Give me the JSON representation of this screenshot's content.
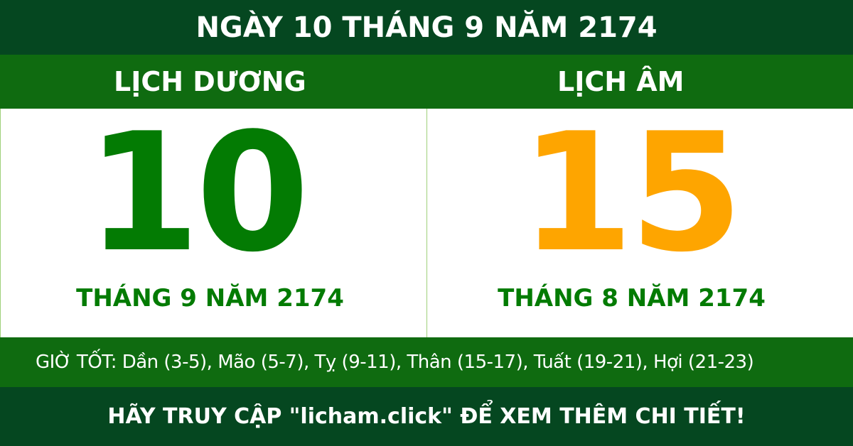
{
  "title": "NGÀY 10 THÁNG 9 NĂM 2174",
  "solar": {
    "label": "LỊCH DƯƠNG",
    "day": "10",
    "month_year": "THÁNG 9 NĂM 2174"
  },
  "lunar": {
    "label": "LỊCH ÂM",
    "day": "15",
    "month_year": "THÁNG 8 NĂM 2174"
  },
  "good_hours": "GIỜ TỐT: Dần (3-5), Mão (5-7), Tỵ (9-11), Thân (15-17), Tuất (19-21), Hợi (21-23)",
  "footer": "HÃY TRUY CẬP \"licham.click\" ĐỂ XEM THÊM CHI TIẾT!",
  "colors": {
    "dark_green": "#054720",
    "green": "#0f6b10",
    "solar_day": "#037b03",
    "lunar_day": "#fea500"
  }
}
